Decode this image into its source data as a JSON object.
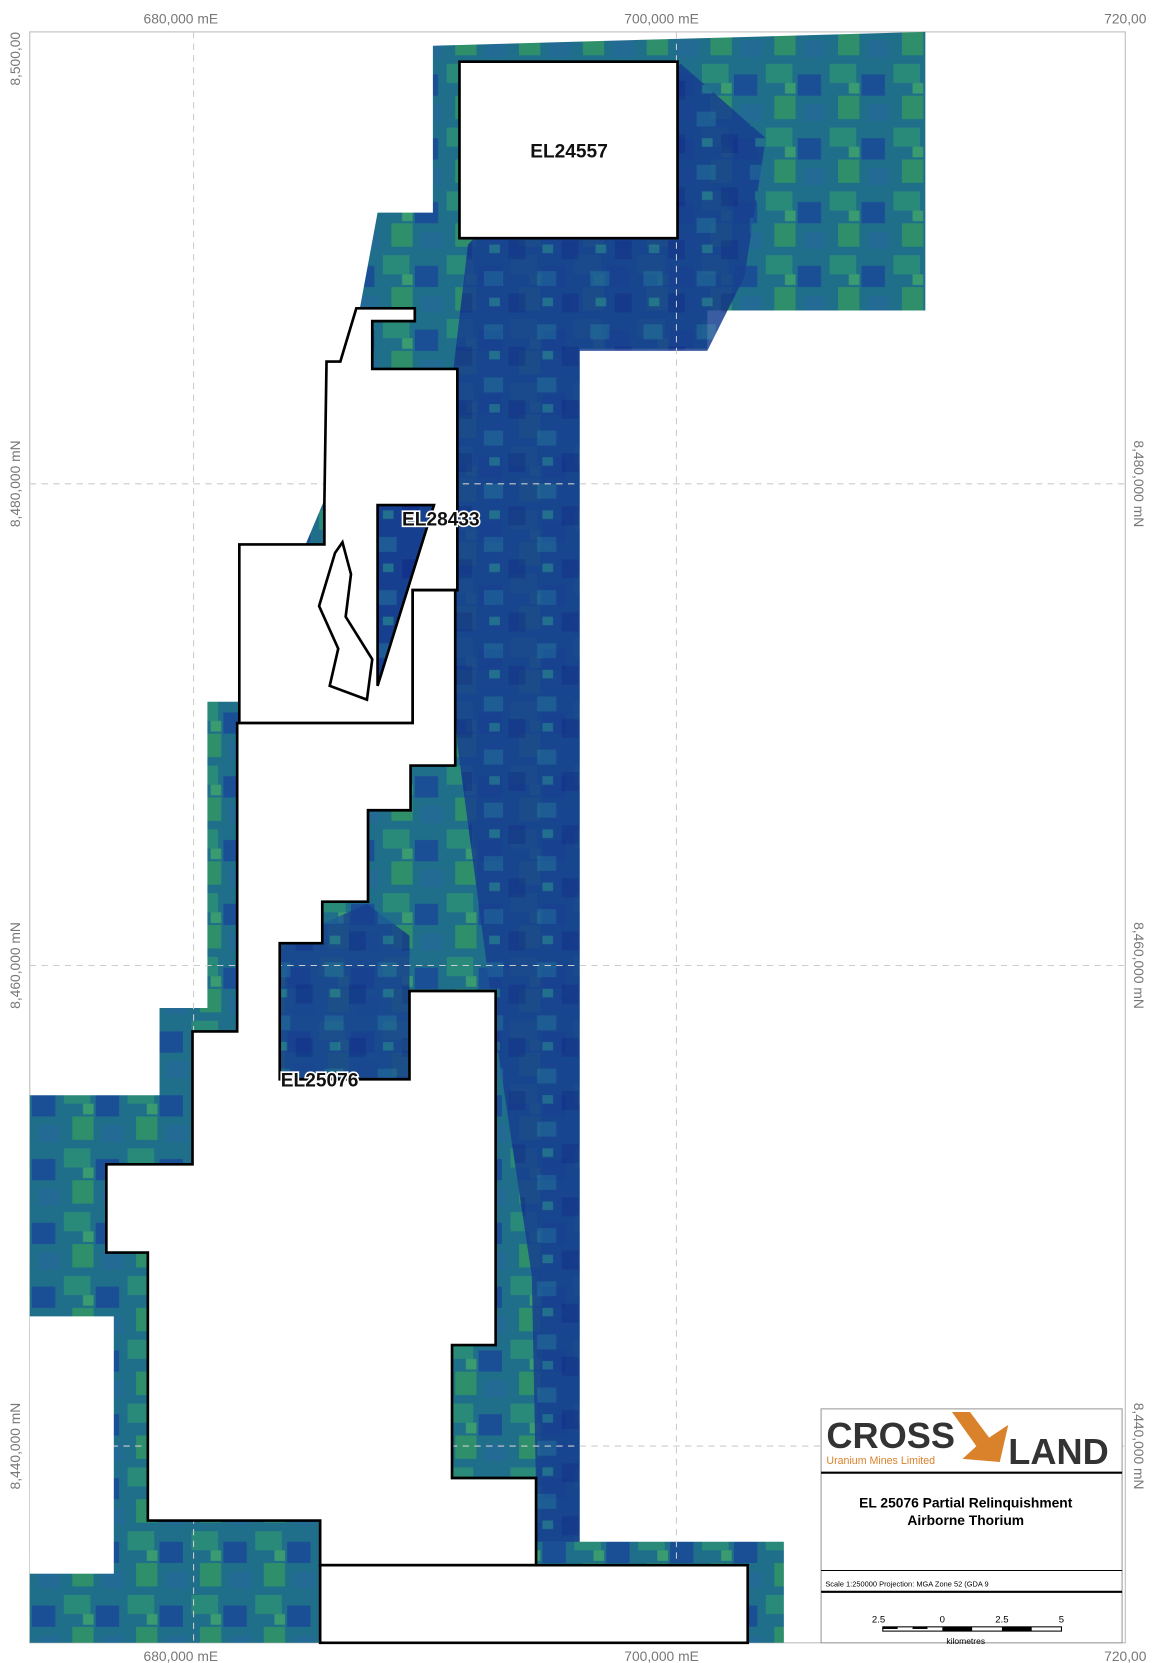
{
  "grid_labels": {
    "top": [
      "680,000 mE",
      "700,000 mE",
      "720,00"
    ],
    "bottom": [
      "680,000 mE",
      "700,000 mE",
      "720,00"
    ],
    "left": [
      "8,500,00",
      "8,480,000 mN",
      "8,460,000 mN",
      "8,440,000 mN"
    ],
    "right": [
      "8,480,000 mN",
      "8,460,000 mN",
      "8,440,000 mN"
    ]
  },
  "tenements": [
    "EL24557",
    "EL28433",
    "EL25076"
  ],
  "legend": {
    "logo": {
      "left": "CROSS",
      "right": "LAND",
      "tagline": "Uranium Mines Limited"
    },
    "title": [
      "EL 25076 Partial Relinquishment",
      "Airborne Thorium"
    ],
    "scale_note": "Scale 1:250000   Projection: MGA Zone 52 (GDA 9",
    "scale_bar": {
      "ticks": [
        "2.5",
        "0",
        "2.5",
        "5"
      ],
      "unit": "kilometres"
    }
  }
}
